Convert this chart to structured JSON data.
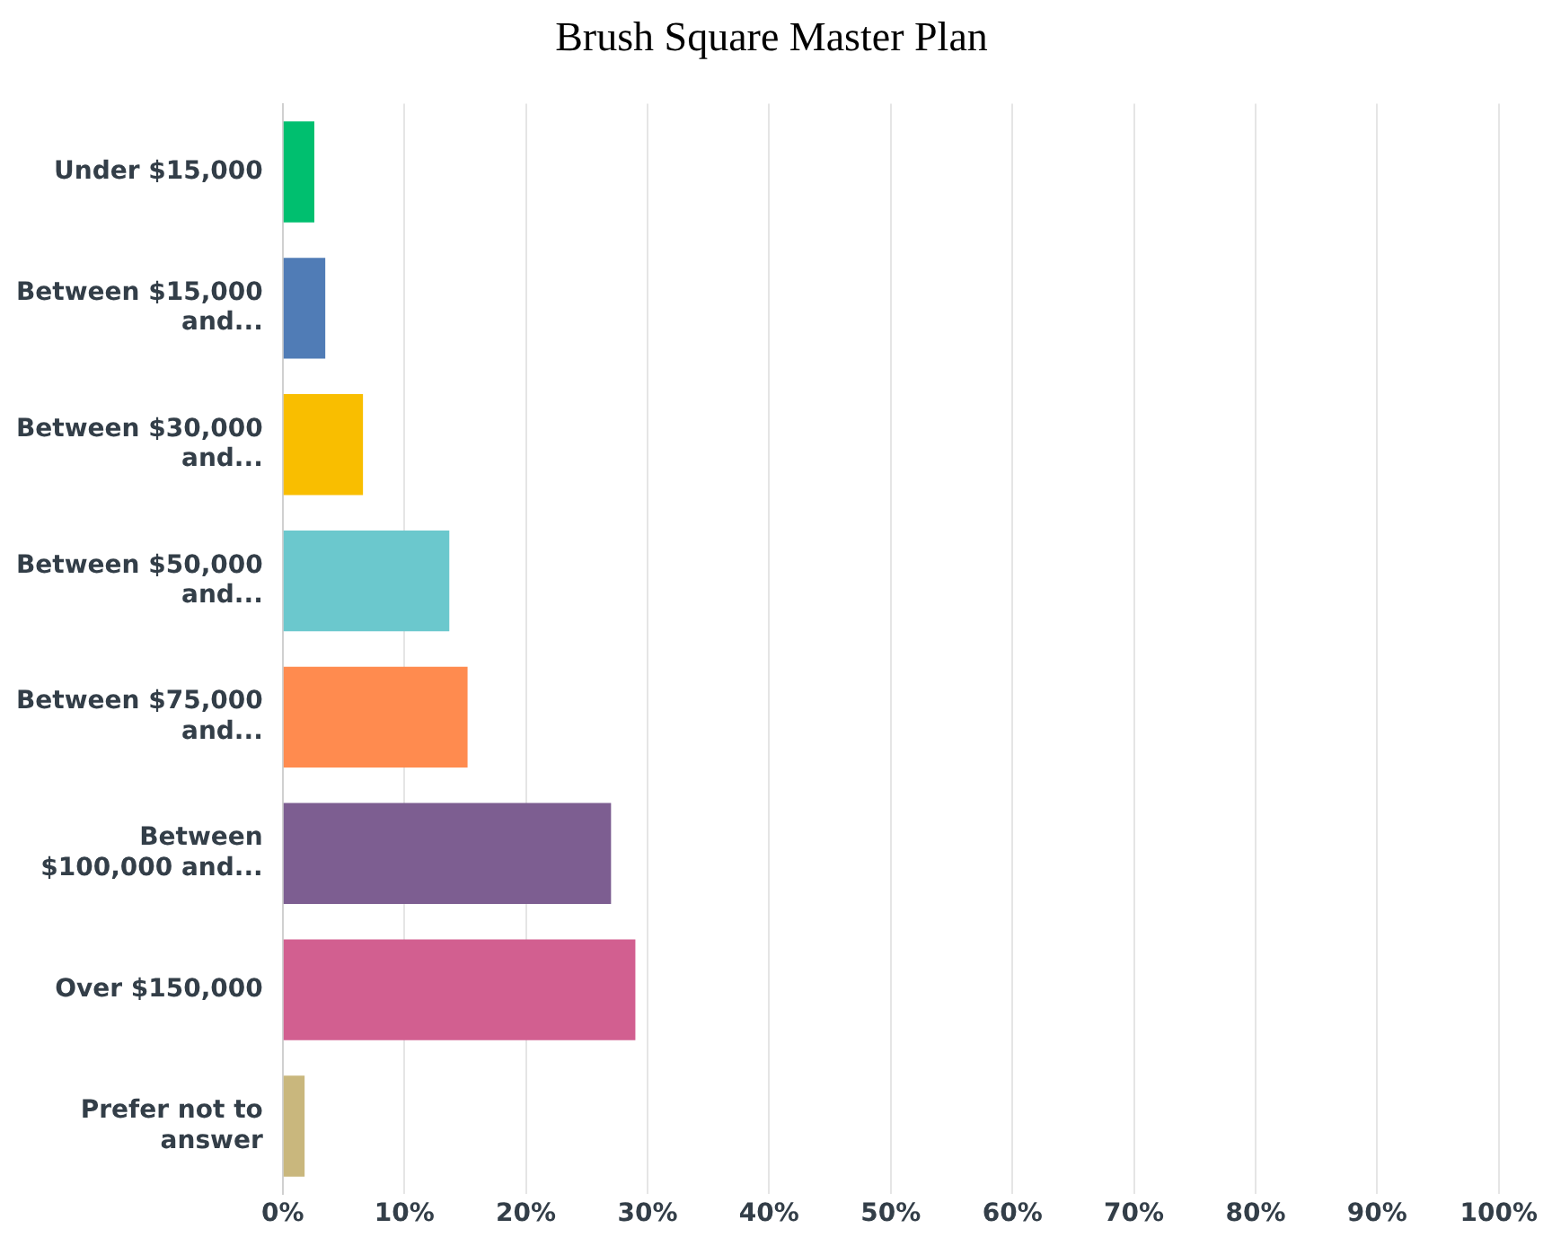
{
  "chart_data": {
    "type": "bar",
    "orientation": "horizontal",
    "title": "Brush Square Master Plan",
    "categories": [
      "Under $15,000",
      "Between $15,000 and...",
      "Between $30,000 and...",
      "Between $50,000 and...",
      "Between $75,000 and...",
      "Between $100,000 and...",
      "Over $150,000",
      "Prefer not to answer"
    ],
    "values": [
      2.6,
      3.5,
      6.6,
      13.7,
      15.2,
      27,
      29,
      1.8
    ],
    "colors": [
      "#00bf6f",
      "#507cb6",
      "#f9be00",
      "#6bc8cd",
      "#ff8b4f",
      "#7d5e91",
      "#d25f90",
      "#c9b77d"
    ],
    "xlim": [
      0,
      100
    ],
    "xticks": [
      {
        "value": 0,
        "label": "0%"
      },
      {
        "value": 10,
        "label": "10%"
      },
      {
        "value": 20,
        "label": "20%"
      },
      {
        "value": 30,
        "label": "30%"
      },
      {
        "value": 40,
        "label": "40%"
      },
      {
        "value": 50,
        "label": "50%"
      },
      {
        "value": 60,
        "label": "60%"
      },
      {
        "value": 70,
        "label": "70%"
      },
      {
        "value": 80,
        "label": "80%"
      },
      {
        "value": 90,
        "label": "90%"
      },
      {
        "value": 100,
        "label": "100%"
      }
    ],
    "grid": "x",
    "legend": false
  }
}
